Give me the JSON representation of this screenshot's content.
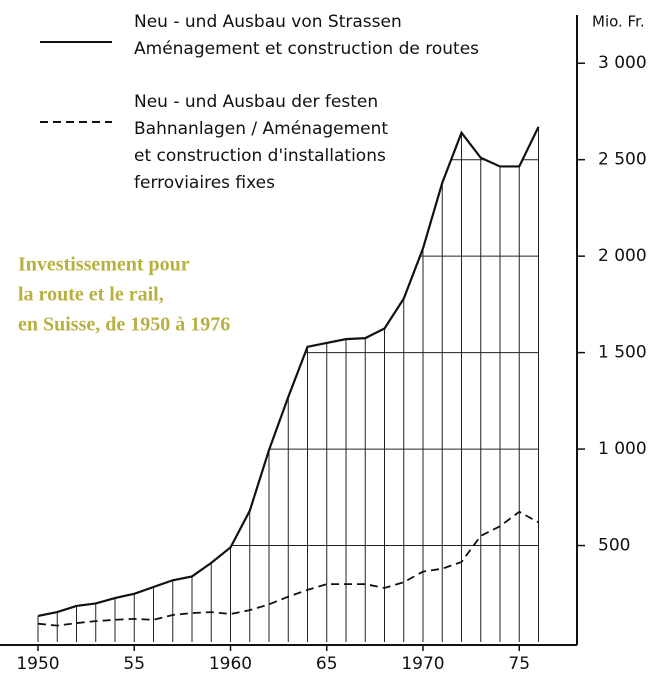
{
  "chart_data": {
    "type": "line",
    "title": [
      "Investissement pour",
      "la route et le rail,",
      "en Suisse, de 1950 à 1976"
    ],
    "y_unit": "Mio. Fr.",
    "x": [
      1950,
      1951,
      1952,
      1953,
      1954,
      1955,
      1956,
      1957,
      1958,
      1959,
      1960,
      1961,
      1962,
      1963,
      1964,
      1965,
      1966,
      1967,
      1968,
      1969,
      1970,
      1971,
      1972,
      1973,
      1974,
      1975,
      1976
    ],
    "series": [
      {
        "name": [
          "Neu - und Ausbau von Strassen",
          "Aménagement et construction de routes"
        ],
        "color": "#111111",
        "dash": false,
        "values": [
          135,
          155,
          187,
          200,
          228,
          250,
          285,
          320,
          340,
          410,
          490,
          680,
          995,
          1270,
          1530,
          1550,
          1570,
          1575,
          1625,
          1780,
          2040,
          2380,
          2640,
          2510,
          2465,
          2465,
          2670
        ]
      },
      {
        "name": [
          "Neu - und Ausbau der festen",
          "Bahnanlagen / Aménagement",
          "et construction d'installations",
          "ferroviaires fixes"
        ],
        "color": "#111111",
        "dash": true,
        "values": [
          95,
          85,
          98,
          108,
          115,
          120,
          115,
          140,
          150,
          155,
          145,
          165,
          195,
          235,
          270,
          300,
          300,
          300,
          280,
          310,
          365,
          380,
          415,
          550,
          600,
          675,
          620
        ]
      }
    ],
    "xlim": [
      1950,
      1978
    ],
    "xticks": [
      1950,
      {
        "value": 1955,
        "label": "55"
      },
      1960,
      {
        "value": 1965,
        "label": "65"
      },
      1970,
      {
        "value": 1975,
        "label": "75"
      }
    ],
    "ylim": [
      0,
      3250
    ],
    "yticks": [
      {
        "value": 500,
        "label": "500"
      },
      {
        "value": 1000,
        "label": "1 000"
      },
      {
        "value": 1500,
        "label": "1 500"
      },
      {
        "value": 2000,
        "label": "2 000"
      },
      {
        "value": 2500,
        "label": "2 500"
      },
      {
        "value": 3000,
        "label": "3 000"
      }
    ],
    "grid": true
  }
}
